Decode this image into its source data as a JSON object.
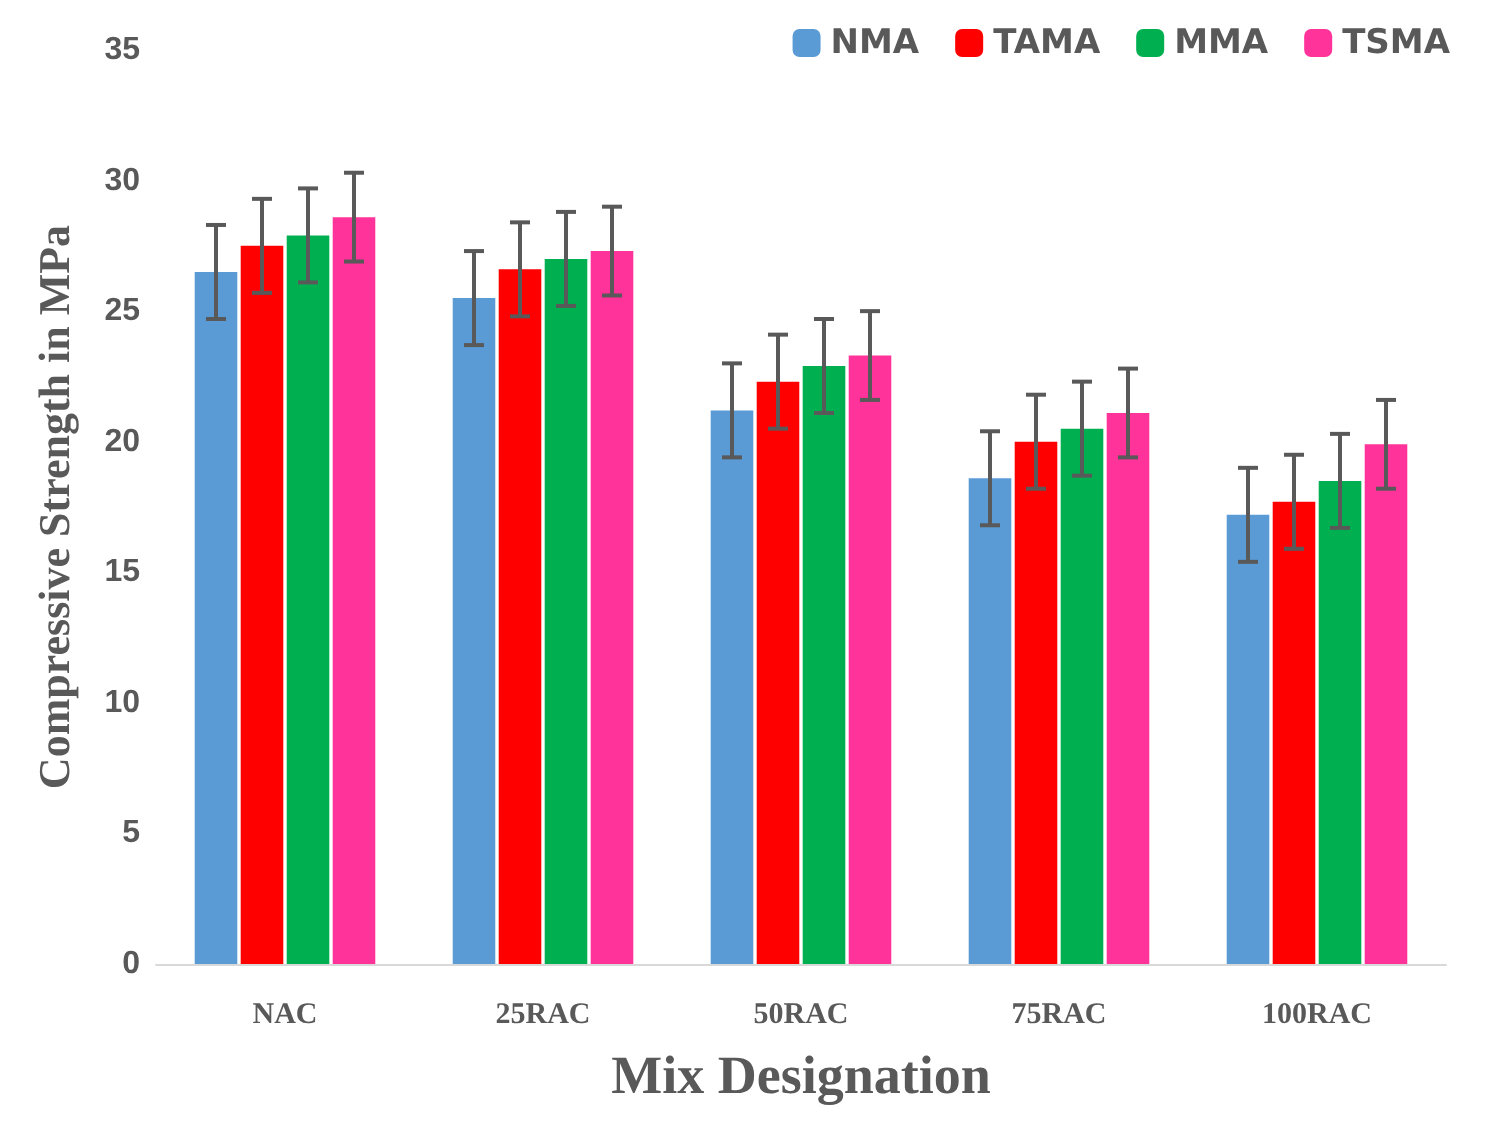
{
  "chart_data": {
    "type": "bar",
    "xlabel": "Mix Designation",
    "ylabel": "Compressive Strength in MPa",
    "categories": [
      "NAC",
      "25RAC",
      "50RAC",
      "75RAC",
      "100RAC"
    ],
    "series": [
      {
        "name": "NMA",
        "color": "#5b9bd5",
        "values": [
          26.5,
          25.5,
          21.2,
          18.6,
          17.2
        ],
        "errors": [
          1.8,
          1.8,
          1.8,
          1.8,
          1.8
        ]
      },
      {
        "name": "TAMA",
        "color": "#ff0000",
        "values": [
          27.5,
          26.6,
          22.3,
          20.0,
          17.7
        ],
        "errors": [
          1.8,
          1.8,
          1.8,
          1.8,
          1.8
        ]
      },
      {
        "name": "MMA",
        "color": "#00b050",
        "values": [
          27.9,
          27.0,
          22.9,
          20.5,
          18.5
        ],
        "errors": [
          1.8,
          1.8,
          1.8,
          1.8,
          1.8
        ]
      },
      {
        "name": "TSMA",
        "color": "#ff3399",
        "values": [
          28.6,
          27.3,
          23.3,
          21.1,
          19.9
        ],
        "errors": [
          1.7,
          1.7,
          1.7,
          1.7,
          1.7
        ]
      }
    ],
    "ylim": [
      0,
      35
    ],
    "yticks": [
      0,
      5,
      10,
      15,
      20,
      25,
      30,
      35
    ],
    "grid": false,
    "legend": "top right"
  }
}
